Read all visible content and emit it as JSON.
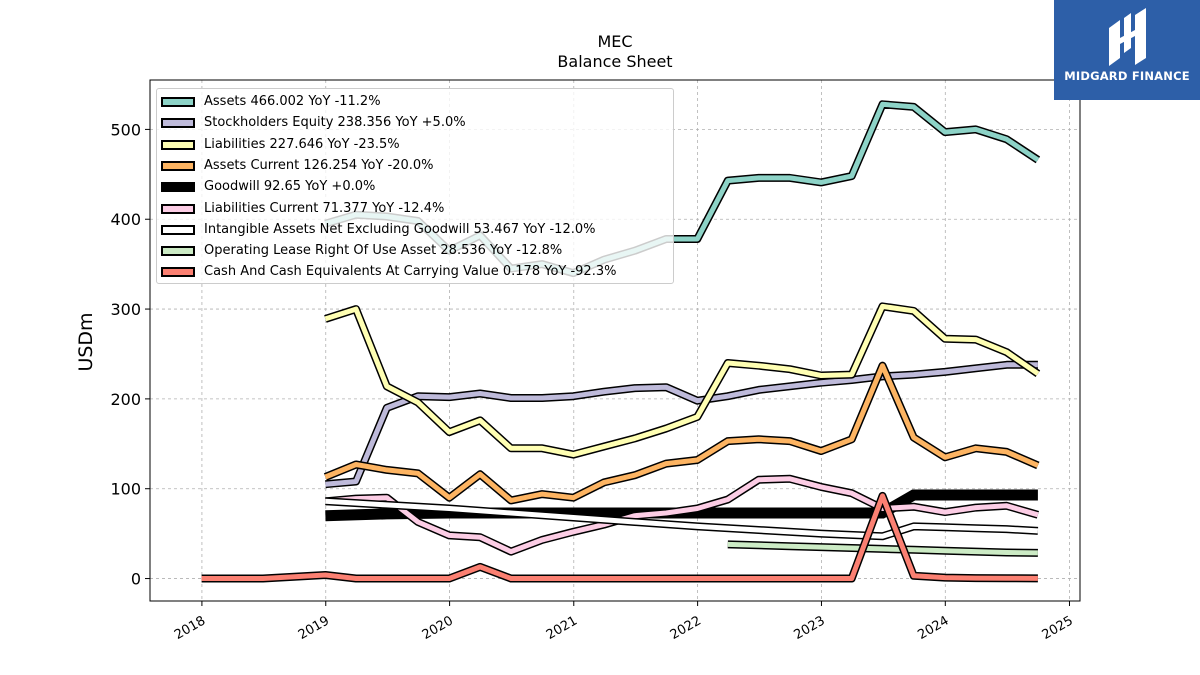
{
  "brand": {
    "name": "MIDGARD FINANCE",
    "background": "#2d5fa8"
  },
  "chart_data": {
    "type": "line",
    "title": "MEC",
    "subtitle": "Balance  Sheet",
    "xlabel": "",
    "ylabel": "USDm",
    "xlim": [
      "2017-08-01",
      "2025-02-01"
    ],
    "ylim": [
      -25,
      555
    ],
    "x_ticks": [
      "2018",
      "2019",
      "2020",
      "2021",
      "2022",
      "2023",
      "2024",
      "2025"
    ],
    "y_ticks": [
      0,
      100,
      200,
      300,
      400,
      500
    ],
    "grid": true,
    "legend_position": "top-left",
    "series": [
      {
        "name": "Assets",
        "legend": "Assets  466.002 YoY -11.2%",
        "color": "#8dd3c7",
        "style": "line",
        "points": [
          [
            "2018-12-31",
            395
          ],
          [
            "2019-03-31",
            405
          ],
          [
            "2019-06-30",
            403
          ],
          [
            "2019-09-30",
            398
          ],
          [
            "2019-12-31",
            365
          ],
          [
            "2020-03-31",
            382
          ],
          [
            "2020-06-30",
            345
          ],
          [
            "2020-09-30",
            350
          ],
          [
            "2020-12-31",
            340
          ],
          [
            "2021-03-31",
            355
          ],
          [
            "2021-06-30",
            365
          ],
          [
            "2021-09-30",
            378
          ],
          [
            "2021-12-31",
            378
          ],
          [
            "2022-03-31",
            443
          ],
          [
            "2022-06-30",
            446
          ],
          [
            "2022-09-30",
            446
          ],
          [
            "2022-12-31",
            441
          ],
          [
            "2023-03-31",
            448
          ],
          [
            "2023-06-30",
            528
          ],
          [
            "2023-09-30",
            525
          ],
          [
            "2023-12-31",
            497
          ],
          [
            "2024-03-31",
            500
          ],
          [
            "2024-06-30",
            489
          ],
          [
            "2024-09-30",
            466
          ]
        ]
      },
      {
        "name": "Stockholders Equity",
        "legend": "Stockholders Equity  238.356 YoY +5.0%",
        "color": "#bebada",
        "style": "line",
        "points": [
          [
            "2018-12-31",
            105
          ],
          [
            "2019-03-31",
            108
          ],
          [
            "2019-06-30",
            190
          ],
          [
            "2019-09-30",
            203
          ],
          [
            "2019-12-31",
            202
          ],
          [
            "2020-03-31",
            206
          ],
          [
            "2020-06-30",
            201
          ],
          [
            "2020-09-30",
            201
          ],
          [
            "2020-12-31",
            203
          ],
          [
            "2021-03-31",
            208
          ],
          [
            "2021-06-30",
            212
          ],
          [
            "2021-09-30",
            213
          ],
          [
            "2021-12-31",
            198
          ],
          [
            "2022-03-31",
            203
          ],
          [
            "2022-06-30",
            210
          ],
          [
            "2022-09-30",
            214
          ],
          [
            "2022-12-31",
            218
          ],
          [
            "2023-03-31",
            221
          ],
          [
            "2023-06-30",
            225
          ],
          [
            "2023-09-30",
            227
          ],
          [
            "2023-12-31",
            230
          ],
          [
            "2024-03-31",
            234
          ],
          [
            "2024-06-30",
            238
          ],
          [
            "2024-09-30",
            238
          ]
        ]
      },
      {
        "name": "Liabilities",
        "legend": "Liabilities  227.646 YoY -23.5%",
        "color": "#ffffb3",
        "style": "line",
        "points": [
          [
            "2018-12-31",
            289
          ],
          [
            "2019-03-31",
            300
          ],
          [
            "2019-06-30",
            214
          ],
          [
            "2019-09-30",
            196
          ],
          [
            "2019-12-31",
            163
          ],
          [
            "2020-03-31",
            176
          ],
          [
            "2020-06-30",
            145
          ],
          [
            "2020-09-30",
            145
          ],
          [
            "2020-12-31",
            138
          ],
          [
            "2021-03-31",
            147
          ],
          [
            "2021-06-30",
            156
          ],
          [
            "2021-09-30",
            167
          ],
          [
            "2021-12-31",
            180
          ],
          [
            "2022-03-31",
            240
          ],
          [
            "2022-06-30",
            237
          ],
          [
            "2022-09-30",
            233
          ],
          [
            "2022-12-31",
            226
          ],
          [
            "2023-03-31",
            227
          ],
          [
            "2023-06-30",
            303
          ],
          [
            "2023-09-30",
            298
          ],
          [
            "2023-12-31",
            267
          ],
          [
            "2024-03-31",
            266
          ],
          [
            "2024-06-30",
            252
          ],
          [
            "2024-09-30",
            228
          ]
        ]
      },
      {
        "name": "Assets Current",
        "legend": "Assets Current  126.254 YoY -20.0%",
        "color": "#fdb462",
        "style": "line",
        "points": [
          [
            "2018-12-31",
            113
          ],
          [
            "2019-03-31",
            127
          ],
          [
            "2019-06-30",
            121
          ],
          [
            "2019-09-30",
            117
          ],
          [
            "2019-12-31",
            90
          ],
          [
            "2020-03-31",
            116
          ],
          [
            "2020-06-30",
            87
          ],
          [
            "2020-09-30",
            94
          ],
          [
            "2020-12-31",
            90
          ],
          [
            "2021-03-31",
            107
          ],
          [
            "2021-06-30",
            115
          ],
          [
            "2021-09-30",
            128
          ],
          [
            "2021-12-31",
            132
          ],
          [
            "2022-03-31",
            153
          ],
          [
            "2022-06-30",
            155
          ],
          [
            "2022-09-30",
            153
          ],
          [
            "2022-12-31",
            142
          ],
          [
            "2023-03-31",
            155
          ],
          [
            "2023-06-30",
            237
          ],
          [
            "2023-09-30",
            157
          ],
          [
            "2023-12-31",
            135
          ],
          [
            "2024-03-31",
            145
          ],
          [
            "2024-06-30",
            141
          ],
          [
            "2024-09-30",
            126
          ]
        ]
      },
      {
        "name": "Goodwill",
        "legend": "Goodwill  92.65 YoY +0.0%",
        "color": "#000000",
        "style": "bar",
        "points": [
          [
            "2018-12-31",
            70
          ],
          [
            "2019-06-30",
            72
          ],
          [
            "2019-12-31",
            73
          ],
          [
            "2020-12-31",
            73
          ],
          [
            "2021-12-31",
            73
          ],
          [
            "2022-12-31",
            73
          ],
          [
            "2023-06-30",
            73
          ],
          [
            "2023-09-30",
            93
          ],
          [
            "2023-12-31",
            93
          ],
          [
            "2024-09-30",
            93
          ]
        ]
      },
      {
        "name": "Liabilities Current",
        "legend": "Liabilities Current  71.377 YoY -12.4%",
        "color": "#fccde5",
        "style": "line",
        "points": [
          [
            "2018-12-31",
            86
          ],
          [
            "2019-03-31",
            89
          ],
          [
            "2019-06-30",
            90
          ],
          [
            "2019-09-30",
            63
          ],
          [
            "2019-12-31",
            48
          ],
          [
            "2020-03-31",
            46
          ],
          [
            "2020-06-30",
            30
          ],
          [
            "2020-09-30",
            43
          ],
          [
            "2020-12-31",
            52
          ],
          [
            "2021-03-31",
            60
          ],
          [
            "2021-06-30",
            70
          ],
          [
            "2021-09-30",
            73
          ],
          [
            "2021-12-31",
            78
          ],
          [
            "2022-03-31",
            88
          ],
          [
            "2022-06-30",
            110
          ],
          [
            "2022-09-30",
            111
          ],
          [
            "2022-12-31",
            102
          ],
          [
            "2023-03-31",
            95
          ],
          [
            "2023-06-30",
            78
          ],
          [
            "2023-09-30",
            80
          ],
          [
            "2023-12-31",
            74
          ],
          [
            "2024-03-31",
            79
          ],
          [
            "2024-06-30",
            81
          ],
          [
            "2024-09-30",
            71
          ]
        ]
      },
      {
        "name": "Intangible Assets Net Excluding Goodwill",
        "legend": "Intangible Assets Net Excluding Goodwill  53.467 YoY -12.0%",
        "color": "#ffffff",
        "style": "line",
        "points": [
          [
            "2018-12-31",
            86
          ],
          [
            "2019-06-30",
            82
          ],
          [
            "2019-12-31",
            78
          ],
          [
            "2020-06-30",
            73
          ],
          [
            "2020-12-31",
            68
          ],
          [
            "2021-06-30",
            63
          ],
          [
            "2021-12-31",
            58
          ],
          [
            "2022-06-30",
            54
          ],
          [
            "2022-12-31",
            50
          ],
          [
            "2023-06-30",
            47
          ],
          [
            "2023-09-30",
            58
          ],
          [
            "2023-12-31",
            57
          ],
          [
            "2024-03-31",
            56
          ],
          [
            "2024-06-30",
            55
          ],
          [
            "2024-09-30",
            53
          ]
        ]
      },
      {
        "name": "Operating Lease Right Of Use Asset",
        "legend": "Operating Lease Right Of Use Asset  28.536 YoY -12.8%",
        "color": "#ccebc5",
        "style": "line",
        "points": [
          [
            "2022-03-31",
            38
          ],
          [
            "2022-06-30",
            37
          ],
          [
            "2022-09-30",
            36
          ],
          [
            "2022-12-31",
            35
          ],
          [
            "2023-03-31",
            34
          ],
          [
            "2023-06-30",
            33
          ],
          [
            "2023-09-30",
            32
          ],
          [
            "2023-12-31",
            31
          ],
          [
            "2024-03-31",
            30
          ],
          [
            "2024-06-30",
            29
          ],
          [
            "2024-09-30",
            28.5
          ]
        ]
      },
      {
        "name": "Cash And Cash Equivalents At Carrying Value",
        "legend": "Cash And Cash Equivalents At Carrying Value  0.178 YoY -92.3%",
        "color": "#fb8072",
        "style": "line",
        "points": [
          [
            "2017-12-31",
            0
          ],
          [
            "2018-06-30",
            0
          ],
          [
            "2018-12-31",
            4
          ],
          [
            "2019-03-31",
            0
          ],
          [
            "2019-06-30",
            0
          ],
          [
            "2019-09-30",
            0
          ],
          [
            "2019-12-31",
            0
          ],
          [
            "2020-03-31",
            13
          ],
          [
            "2020-06-30",
            0
          ],
          [
            "2020-09-30",
            0
          ],
          [
            "2020-12-31",
            0
          ],
          [
            "2021-06-30",
            0
          ],
          [
            "2021-12-31",
            0
          ],
          [
            "2022-06-30",
            0
          ],
          [
            "2022-12-31",
            0
          ],
          [
            "2023-03-31",
            0
          ],
          [
            "2023-06-30",
            92
          ],
          [
            "2023-09-30",
            3
          ],
          [
            "2023-12-31",
            1
          ],
          [
            "2024-03-31",
            0.5
          ],
          [
            "2024-06-30",
            0.4
          ],
          [
            "2024-09-30",
            0.2
          ]
        ]
      }
    ]
  }
}
